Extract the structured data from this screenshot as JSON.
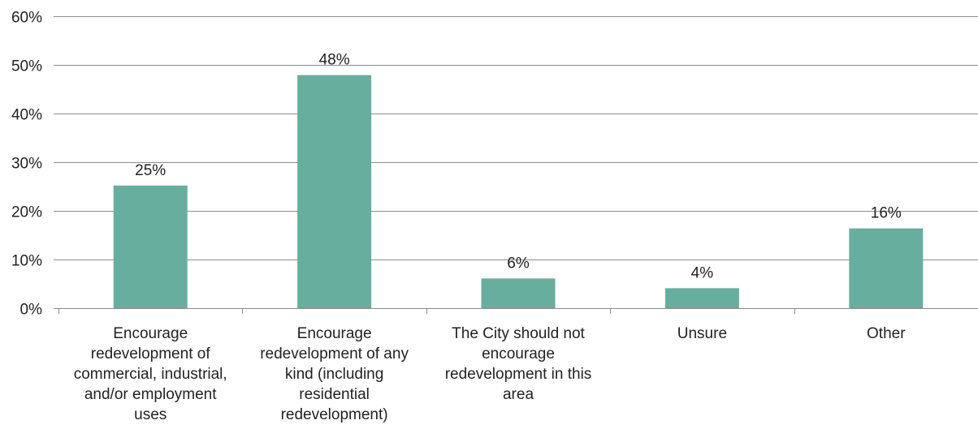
{
  "chart_data": {
    "type": "bar",
    "categories": [
      [
        "Encourage",
        "redevelopment of",
        "commercial, industrial,",
        "and/or employment",
        "uses"
      ],
      [
        "Encourage",
        "redevelopment of any",
        "kind (including",
        "residential",
        "redevelopment)"
      ],
      [
        "The City should not",
        "encourage",
        "redevelopment in this",
        "area"
      ],
      [
        "Unsure"
      ],
      [
        "Other"
      ]
    ],
    "values": [
      25.2,
      47.9,
      6.1,
      4.1,
      16.4
    ],
    "data_labels": [
      "25%",
      "48%",
      "6%",
      "4%",
      "16%"
    ],
    "ylim": [
      0,
      60
    ],
    "yticks": [
      0,
      10,
      20,
      30,
      40,
      50,
      60
    ],
    "ytick_labels": [
      "0%",
      "10%",
      "20%",
      "30%",
      "40%",
      "50%",
      "60%"
    ],
    "grid": true,
    "bar_color": "#67ae9e",
    "title": "",
    "xlabel": "",
    "ylabel": ""
  }
}
